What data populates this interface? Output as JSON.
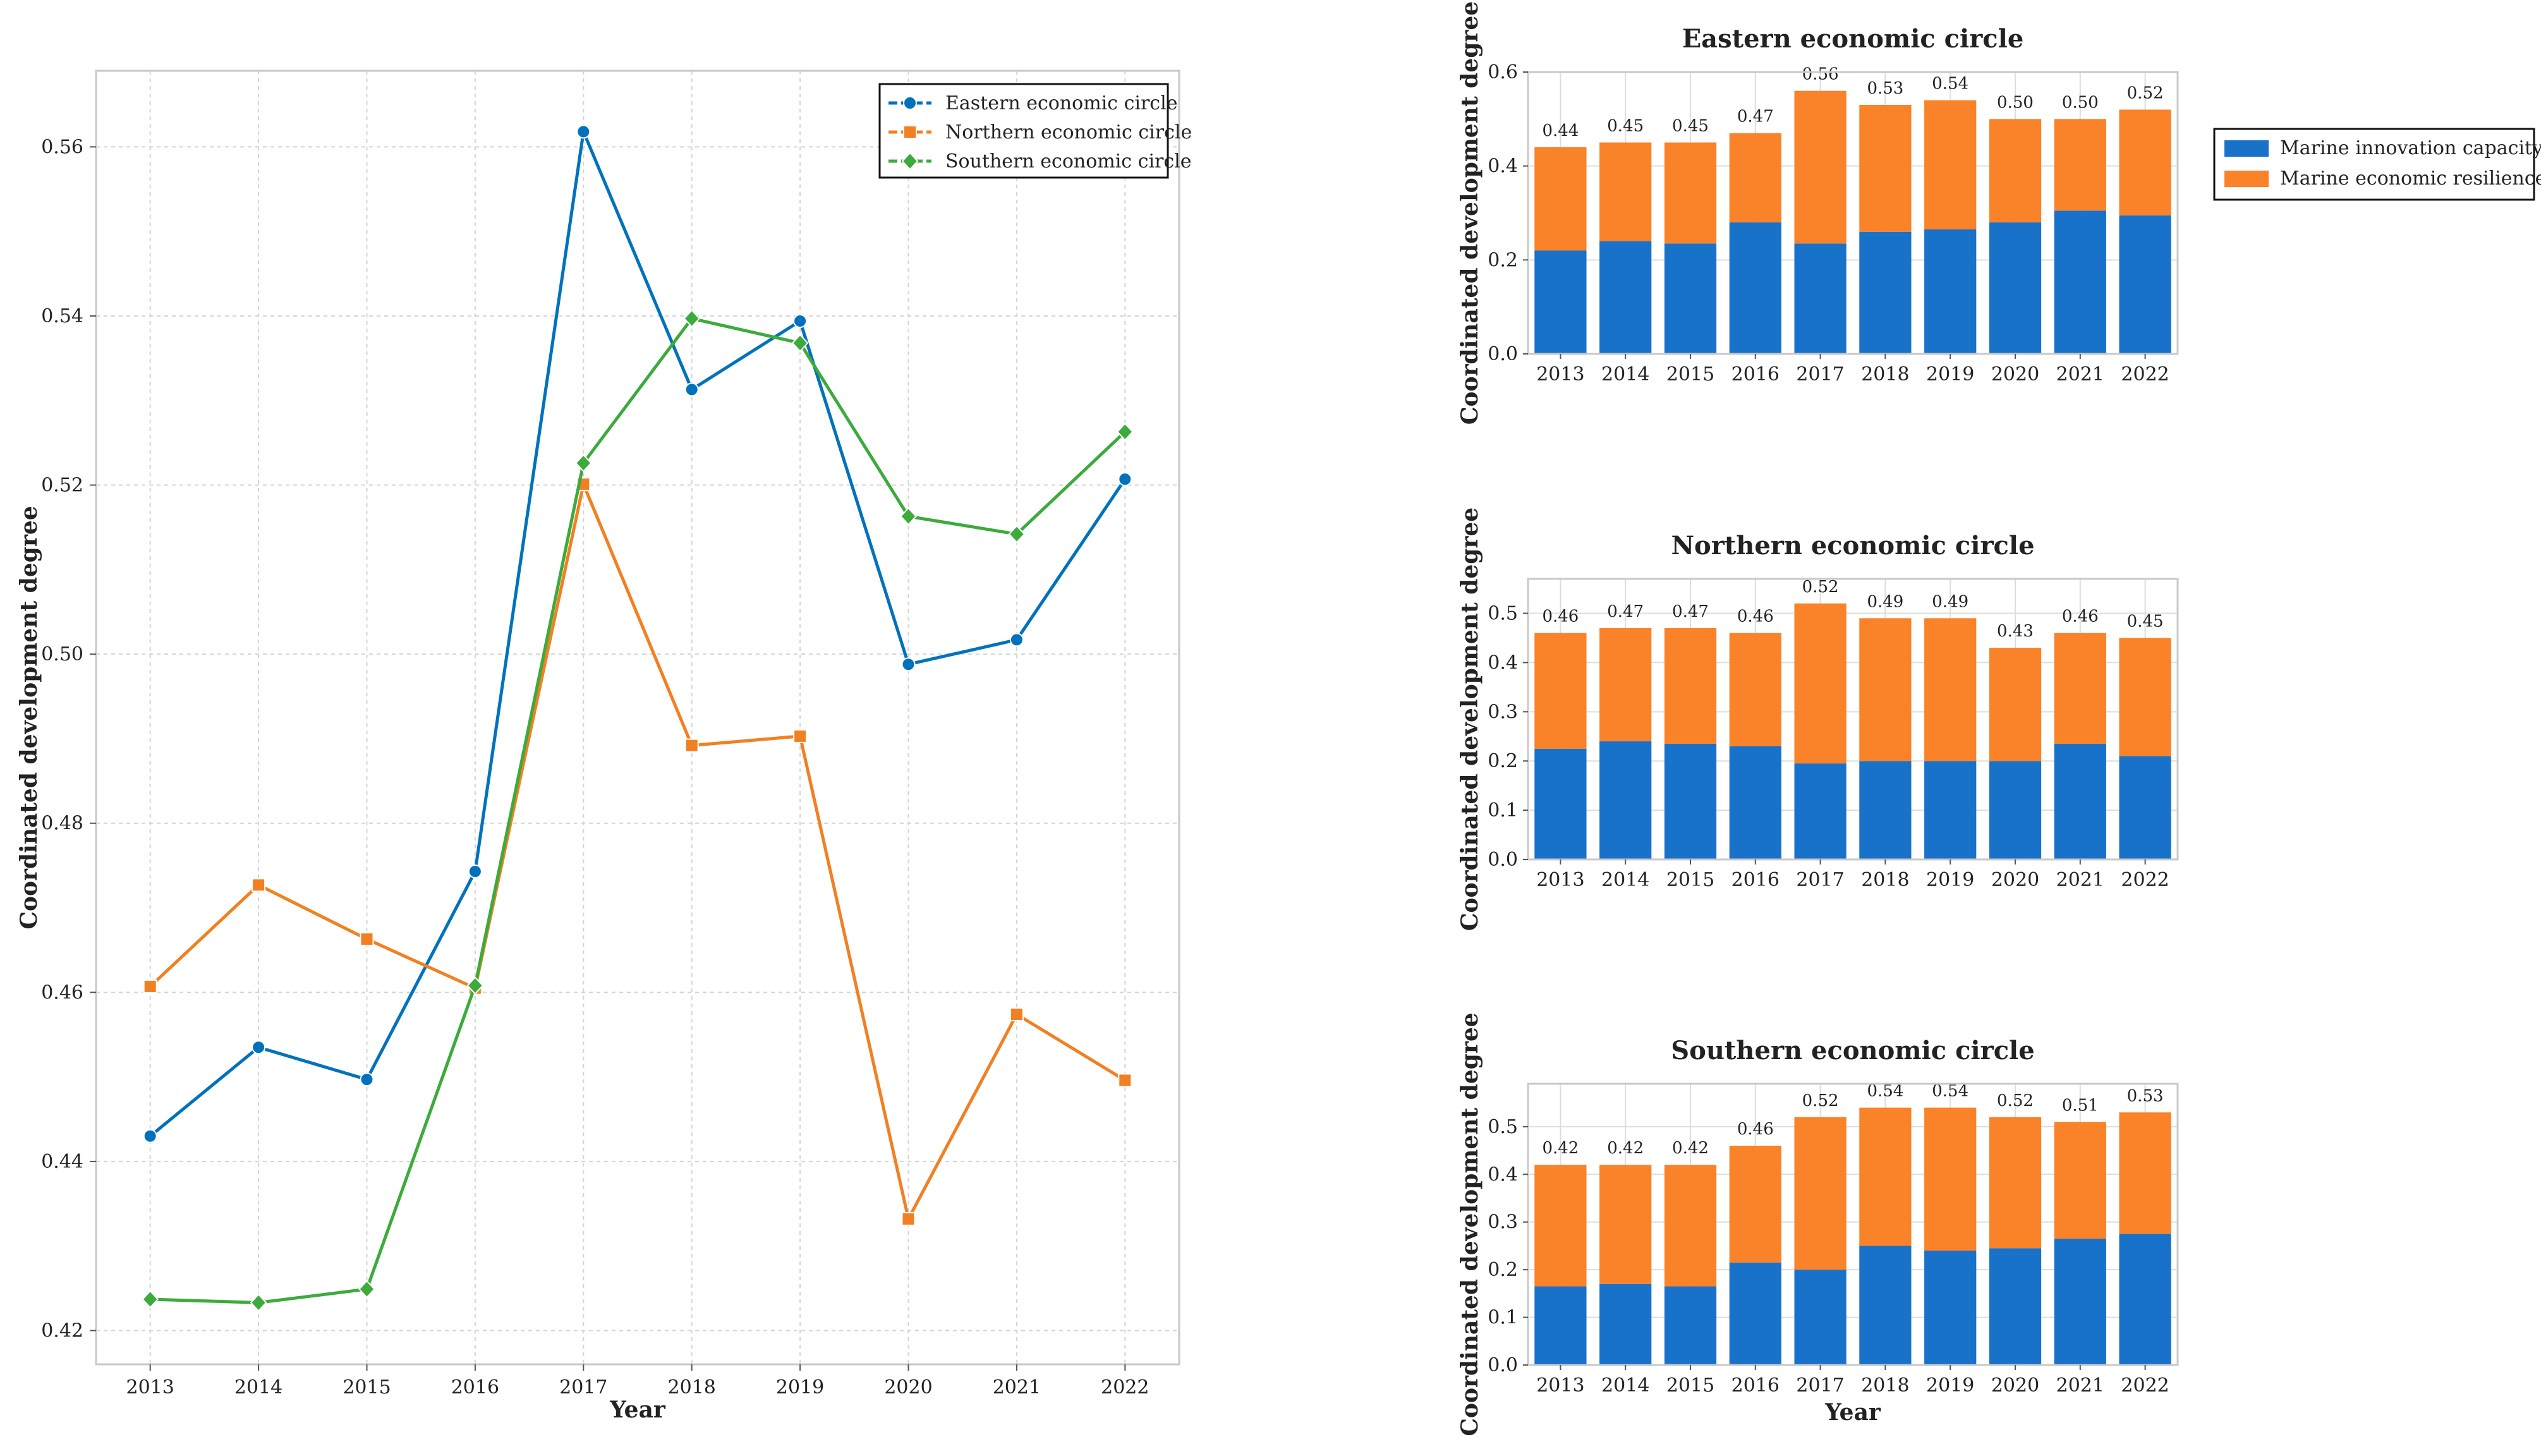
{
  "chart_data": [
    {
      "type": "line",
      "title": "",
      "xlabel": "Year",
      "ylabel": "Coordinated development degree",
      "x": [
        "2013",
        "2014",
        "2015",
        "2016",
        "2017",
        "2018",
        "2019",
        "2020",
        "2021",
        "2022"
      ],
      "ylim": [
        0.416,
        0.569
      ],
      "yticks": [
        0.42,
        0.44,
        0.46,
        0.48,
        0.5,
        0.52,
        0.54,
        0.56
      ],
      "ytick_labels": [
        "0.42",
        "0.44",
        "0.46",
        "0.48",
        "0.50",
        "0.52",
        "0.54",
        "0.56"
      ],
      "grid": true,
      "legend_position": "top-right",
      "series": [
        {
          "name": "Eastern economic circle",
          "color": "#0072bd",
          "marker": "circle",
          "values": [
            0.443,
            0.4535,
            0.4497,
            0.4743,
            0.5618,
            0.5313,
            0.5394,
            0.4988,
            0.5017,
            0.5207
          ]
        },
        {
          "name": "Northern economic circle",
          "color": "#f28022",
          "marker": "square",
          "values": [
            0.4607,
            0.4727,
            0.4663,
            0.4605,
            0.5201,
            0.4892,
            0.4903,
            0.4332,
            0.4574,
            0.4496
          ]
        },
        {
          "name": "Southern economic circle",
          "color": "#3cab3c",
          "marker": "diamond",
          "values": [
            0.4237,
            0.4233,
            0.4249,
            0.4608,
            0.5226,
            0.5397,
            0.5368,
            0.5163,
            0.5142,
            0.5263
          ]
        }
      ]
    },
    {
      "type": "bar",
      "stacked": true,
      "title": "Eastern economic circle",
      "xlabel": "",
      "ylabel": "Coordinated development degree",
      "categories": [
        "2013",
        "2014",
        "2015",
        "2016",
        "2017",
        "2018",
        "2019",
        "2020",
        "2021",
        "2022"
      ],
      "ylim": [
        0,
        0.6
      ],
      "yticks": [
        0,
        0.2,
        0.4,
        0.6
      ],
      "ytick_labels": [
        "0.0",
        "0.2",
        "0.4",
        "0.6"
      ],
      "totals": [
        0.44,
        0.45,
        0.45,
        0.47,
        0.56,
        0.53,
        0.54,
        0.5,
        0.5,
        0.52
      ],
      "total_labels": [
        "0.44",
        "0.45",
        "0.45",
        "0.47",
        "0.56",
        "0.53",
        "0.54",
        "0.50",
        "0.50",
        "0.52"
      ],
      "series": [
        {
          "name": "Marine innovation capacity",
          "color": "#1872ca",
          "values": [
            0.22,
            0.24,
            0.235,
            0.28,
            0.235,
            0.26,
            0.265,
            0.28,
            0.305,
            0.295
          ]
        },
        {
          "name": "Marine economic resilience",
          "color": "#fa8228",
          "values": [
            0.22,
            0.21,
            0.215,
            0.19,
            0.325,
            0.27,
            0.275,
            0.22,
            0.195,
            0.225
          ]
        }
      ]
    },
    {
      "type": "bar",
      "stacked": true,
      "title": "Northern economic circle",
      "xlabel": "",
      "ylabel": "Coordinated development degree",
      "categories": [
        "2013",
        "2014",
        "2015",
        "2016",
        "2017",
        "2018",
        "2019",
        "2020",
        "2021",
        "2022"
      ],
      "ylim": [
        0,
        0.57
      ],
      "yticks": [
        0,
        0.1,
        0.2,
        0.3,
        0.4,
        0.5
      ],
      "ytick_labels": [
        "0.0",
        "0.1",
        "0.2",
        "0.3",
        "0.4",
        "0.5"
      ],
      "totals": [
        0.46,
        0.47,
        0.47,
        0.46,
        0.52,
        0.49,
        0.49,
        0.43,
        0.46,
        0.45
      ],
      "total_labels": [
        "0.46",
        "0.47",
        "0.47",
        "0.46",
        "0.52",
        "0.49",
        "0.49",
        "0.43",
        "0.46",
        "0.45"
      ],
      "series": [
        {
          "name": "Marine innovation capacity",
          "color": "#1872ca",
          "values": [
            0.225,
            0.24,
            0.235,
            0.23,
            0.195,
            0.2,
            0.2,
            0.2,
            0.235,
            0.21
          ]
        },
        {
          "name": "Marine economic resilience",
          "color": "#fa8228",
          "values": [
            0.235,
            0.23,
            0.235,
            0.23,
            0.325,
            0.29,
            0.29,
            0.23,
            0.225,
            0.24
          ]
        }
      ]
    },
    {
      "type": "bar",
      "stacked": true,
      "title": "Southern economic circle",
      "xlabel": "Year",
      "ylabel": "Coordinated development degree",
      "categories": [
        "2013",
        "2014",
        "2015",
        "2016",
        "2017",
        "2018",
        "2019",
        "2020",
        "2021",
        "2022"
      ],
      "ylim": [
        0,
        0.59
      ],
      "yticks": [
        0,
        0.1,
        0.2,
        0.3,
        0.4,
        0.5
      ],
      "ytick_labels": [
        "0.0",
        "0.1",
        "0.2",
        "0.3",
        "0.4",
        "0.5"
      ],
      "totals": [
        0.42,
        0.42,
        0.42,
        0.46,
        0.52,
        0.54,
        0.54,
        0.52,
        0.51,
        0.53
      ],
      "total_labels": [
        "0.42",
        "0.42",
        "0.42",
        "0.46",
        "0.52",
        "0.54",
        "0.54",
        "0.52",
        "0.51",
        "0.53"
      ],
      "series": [
        {
          "name": "Marine innovation capacity",
          "color": "#1872ca",
          "values": [
            0.165,
            0.17,
            0.165,
            0.215,
            0.2,
            0.25,
            0.24,
            0.245,
            0.265,
            0.275
          ]
        },
        {
          "name": "Marine economic resilience",
          "color": "#fa8228",
          "values": [
            0.255,
            0.25,
            0.255,
            0.245,
            0.32,
            0.29,
            0.3,
            0.275,
            0.245,
            0.255
          ]
        }
      ]
    }
  ],
  "shared_legend": {
    "position": "right",
    "items": [
      {
        "label": "Marine innovation capacity",
        "color": "#1872ca"
      },
      {
        "label": "Marine economic resilience",
        "color": "#fa8228"
      }
    ]
  }
}
